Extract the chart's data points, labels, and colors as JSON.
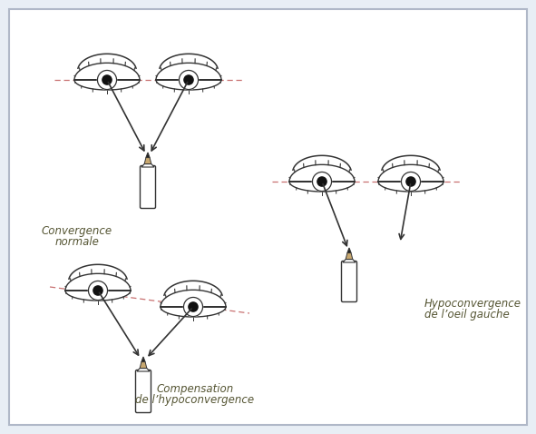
{
  "bg_color": "#e8eef5",
  "border_color": "#b0b8c8",
  "line_color": "#333333",
  "pupil_color": "#111111",
  "dash_color": "#c87070",
  "arrow_color": "#333333",
  "labels": {
    "conv_normale": [
      "Convergence",
      "normale"
    ],
    "hypoconv": [
      "Hypoconvergence",
      "de l’oeil gauche"
    ],
    "compensation": [
      "Compensation",
      "de l’hypoconvergence"
    ]
  },
  "label_fontsize": 8.5,
  "fig_width": 5.91,
  "fig_height": 4.78,
  "dpi": 100
}
